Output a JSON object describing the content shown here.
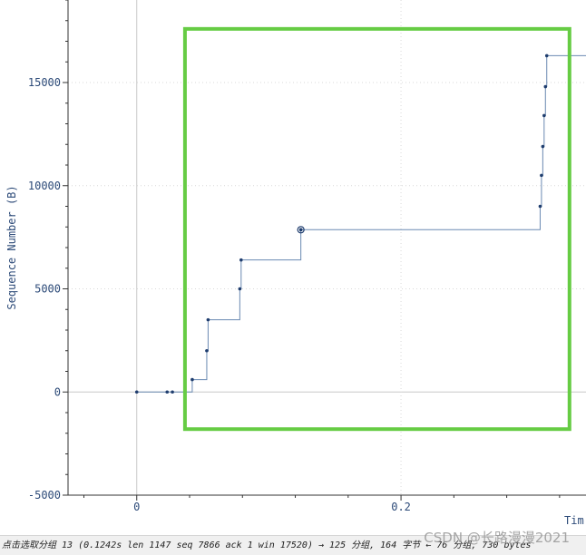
{
  "chart_data": {
    "type": "scatter",
    "title": "",
    "xlabel": "Tim",
    "ylabel": "Sequence Number (B)",
    "xlim": [
      -0.052,
      0.34
    ],
    "ylim": [
      -5000,
      19000
    ],
    "x_ticks": [
      {
        "value": 0,
        "label": "0"
      },
      {
        "value": 0.2,
        "label": "0.2"
      }
    ],
    "y_ticks": [
      {
        "value": -5000,
        "label": "-5000"
      },
      {
        "value": 0,
        "label": "0"
      },
      {
        "value": 5000,
        "label": "5000"
      },
      {
        "value": 10000,
        "label": "10000"
      },
      {
        "value": 15000,
        "label": "15000"
      }
    ],
    "grid": true,
    "series": [
      {
        "x": [
          0.0,
          0.023,
          0.027,
          0.042,
          0.053,
          0.054,
          0.078,
          0.079,
          0.1242,
          0.3053,
          0.3063,
          0.3073,
          0.3083,
          0.3093,
          0.3103
        ],
        "y": [
          0,
          0,
          0,
          600,
          2000,
          3500,
          5000,
          6400,
          7866,
          9000,
          10500,
          11900,
          13400,
          14800,
          16300
        ]
      }
    ],
    "selected_point": {
      "x": 0.1242,
      "y": 7866
    },
    "colors": {
      "series": "#6a89b2",
      "marker": "#1f3d6e",
      "highlight": "#66cc44",
      "axis_text": "#2c4a78"
    },
    "annotation": {
      "type": "rectangle",
      "color": "#66cc44"
    }
  },
  "status": {
    "text": "点击选取分组 13 (0.1242s len 1147 seq 7866 ack 1 win 17520) → 125 分组, 164 字节 ← 76 分组, 730 bytes"
  },
  "watermark": "CSDN @长路漫漫2021"
}
